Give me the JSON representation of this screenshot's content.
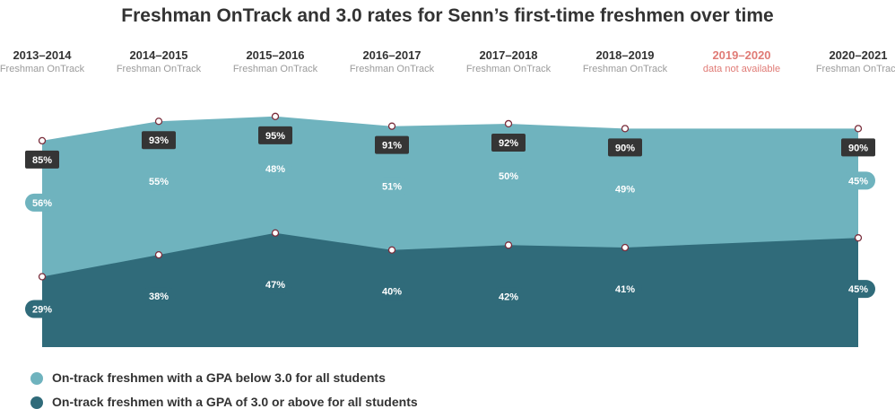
{
  "colors": {
    "below_area": "#6fb3be",
    "above_area": "#306b7a",
    "total_box": "#353535",
    "na_text": "#e07b76"
  },
  "chart_data": {
    "type": "area",
    "title": "Freshman OnTrack and 3.0 rates for Senn’s first-time freshmen over time",
    "x": [
      "2013–2014",
      "2014–2015",
      "2015–2016",
      "2016–2017",
      "2017–2018",
      "2018–2019",
      "2019–2020",
      "2020–2021"
    ],
    "x_sublabels": [
      "Freshman OnTrack",
      "Freshman OnTrack",
      "Freshman OnTrack",
      "Freshman OnTrack",
      "Freshman OnTrack",
      "Freshman OnTrack",
      "data not available",
      "Freshman OnTrack"
    ],
    "unavailable": [
      "2019–2020"
    ],
    "stacked": true,
    "series": [
      {
        "name": "On-track freshmen with a GPA of 3.0 or above for all students",
        "values": [
          29,
          38,
          47,
          40,
          42,
          41,
          null,
          45
        ],
        "labels": [
          "29%",
          "38%",
          "47%",
          "40%",
          "42%",
          "41%",
          "",
          "45%"
        ]
      },
      {
        "name": "On-track freshmen with a GPA below 3.0 for all students",
        "values": [
          56,
          55,
          48,
          51,
          50,
          49,
          null,
          45
        ],
        "labels": [
          "56%",
          "55%",
          "48%",
          "51%",
          "50%",
          "49%",
          "",
          "45%"
        ]
      }
    ],
    "totals": {
      "values": [
        85,
        93,
        95,
        91,
        92,
        90,
        null,
        90
      ],
      "labels": [
        "85%",
        "93%",
        "95%",
        "91%",
        "92%",
        "90%",
        "",
        "90%"
      ]
    },
    "ylim": [
      0,
      100
    ],
    "grid": false,
    "legend": "bottom-left"
  }
}
